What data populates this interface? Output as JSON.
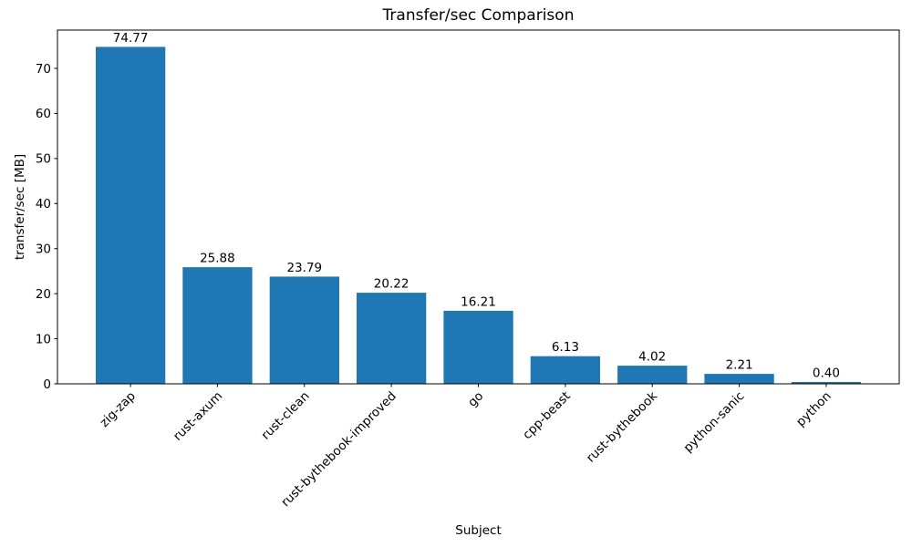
{
  "chart_data": {
    "type": "bar",
    "title": "Transfer/sec Comparison",
    "xlabel": "Subject",
    "ylabel": "transfer/sec [MB]",
    "categories": [
      "zig-zap",
      "rust-axum",
      "rust-clean",
      "rust-bythebook-improved",
      "go",
      "cpp-beast",
      "rust-bythebook",
      "python-sanic",
      "python"
    ],
    "values": [
      74.77,
      25.88,
      23.79,
      20.22,
      16.21,
      6.13,
      4.02,
      2.21,
      0.4
    ],
    "value_labels": [
      "74.77",
      "25.88",
      "23.79",
      "20.22",
      "16.21",
      "6.13",
      "4.02",
      "2.21",
      "0.40"
    ],
    "bar_color": "#1f77b4",
    "axis_color": "#000000",
    "text_color": "#000000",
    "background_color": "#ffffff",
    "ylim": [
      0,
      78.5
    ],
    "yticks": [
      0,
      10,
      20,
      30,
      40,
      50,
      60,
      70
    ],
    "x_tick_rotation_deg": 45,
    "grid": false,
    "legend": null
  }
}
